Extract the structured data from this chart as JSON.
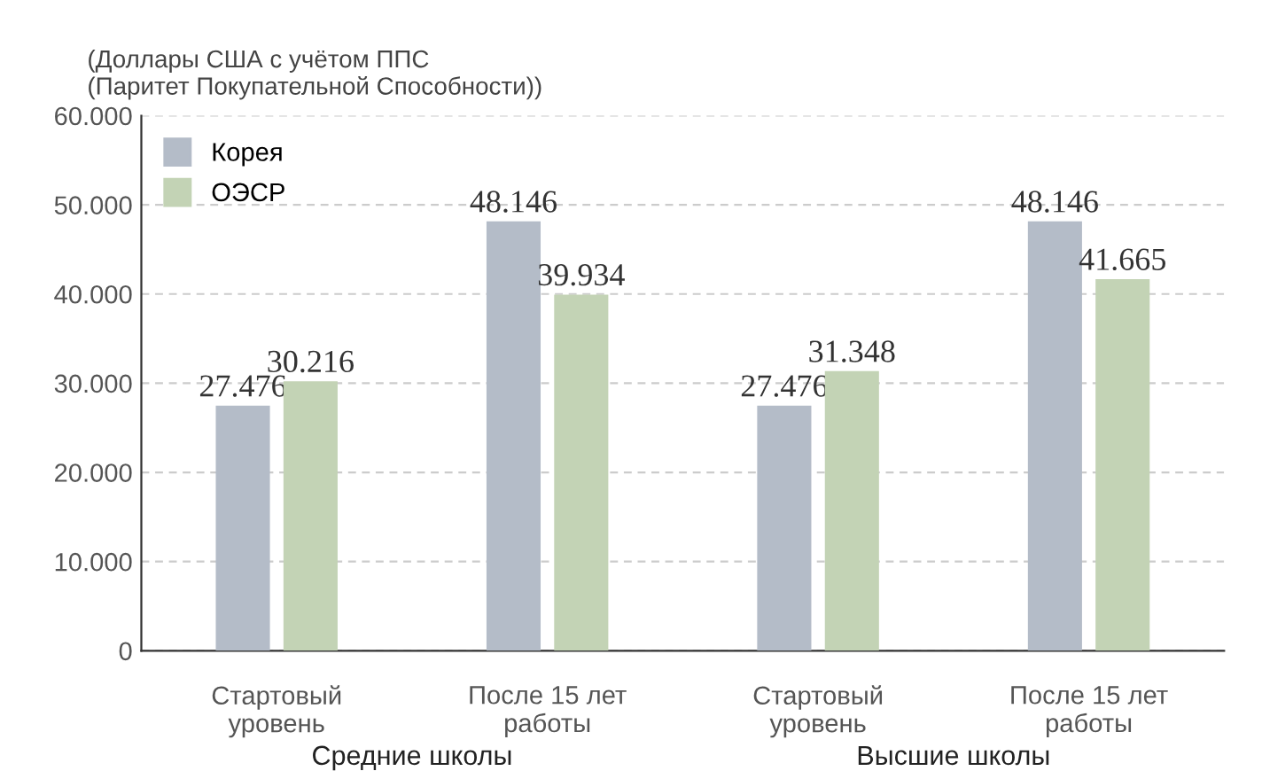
{
  "chart_data": {
    "type": "bar",
    "ylabel": "(Доллары США с учётом ППС\n(Паритет Покупательной Способности))",
    "categories": [
      "Стартовый\nуровень",
      "После 15 лет\nработы",
      "Стартовый\nуровень",
      "После 15 лет\nработы"
    ],
    "series": [
      {
        "name": "Корея",
        "color": "#b4bcc8",
        "values": [
          27476,
          48146,
          27476,
          48146
        ],
        "value_labels": [
          "27.476",
          "48.146",
          "27.476",
          "48.146"
        ]
      },
      {
        "name": "ОЭСР",
        "color": "#c3d3b5",
        "values": [
          30216,
          39934,
          31348,
          41665
        ],
        "value_labels": [
          "30.216",
          "39.934",
          "31.348",
          "41.665"
        ]
      }
    ],
    "annotations": [
      "Средние школы",
      "Высшие школы"
    ],
    "ylim": [
      0,
      60000
    ],
    "yticks": [
      0,
      {
        "value": 10000,
        "label": "10.000"
      },
      {
        "value": 20000,
        "label": "20.000"
      },
      {
        "value": 30000,
        "label": "30.000"
      },
      {
        "value": 40000,
        "label": "40.000"
      },
      {
        "value": 50000,
        "label": "50.000"
      },
      {
        "value": 60000,
        "label": "60.000"
      }
    ],
    "grid": "y",
    "legend": "top left"
  }
}
